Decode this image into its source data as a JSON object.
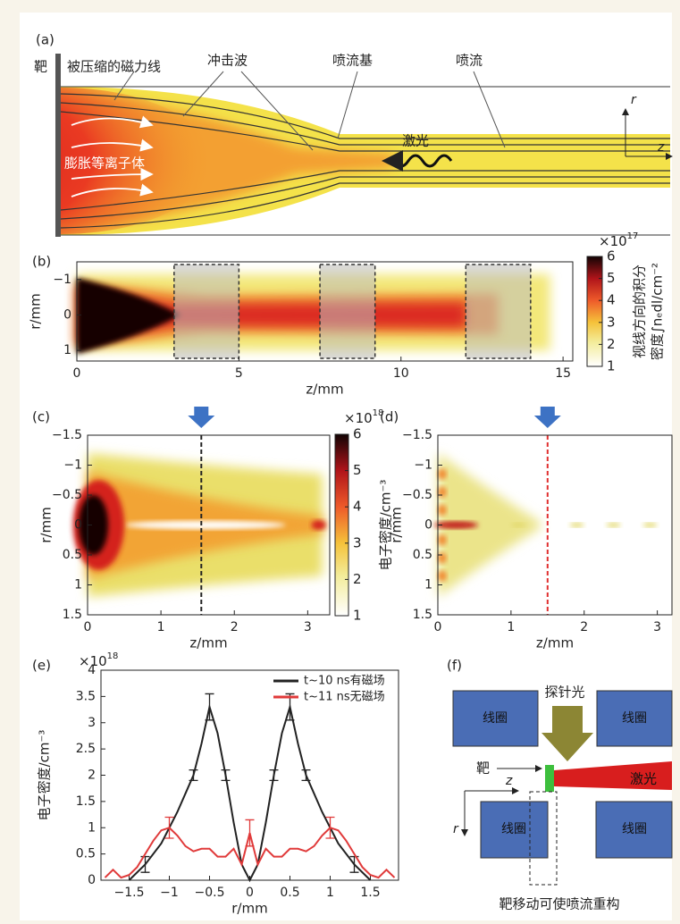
{
  "panel_a": {
    "panel_label": "(a)",
    "target": "靶",
    "field_lines": "被压缩的磁力线",
    "shock": "冲击波",
    "jet_base": "喷流基",
    "jet": "喷流",
    "plasma": "膨胀等离子体",
    "laser": "激光",
    "r_axis": "r",
    "z_axis": "z"
  },
  "chart_data": [
    {
      "type": "heatmap",
      "panel_label": "(b)",
      "xlabel": "z/mm",
      "ylabel": "r/mm",
      "xlim": [
        0,
        15.3
      ],
      "xticks": [
        0,
        5,
        10,
        15
      ],
      "ylim": [
        -1.5,
        1.3
      ],
      "yticks": [
        {
          "value": -1,
          "label": "−1"
        },
        0,
        1
      ],
      "colorbar": {
        "lim": [
          1,
          6
        ],
        "ticks": [
          1,
          2,
          3,
          4,
          5,
          6
        ],
        "scale_base": "×10",
        "scale_exponent": "17",
        "label": [
          "视线方向的积分",
          "密度∫nₑdl/cm⁻²"
        ]
      }
    },
    {
      "type": "heatmap",
      "panel_label": "(c)",
      "xlabel": "z/mm",
      "ylabel": "r/mm",
      "xlim": [
        0,
        3.3
      ],
      "xticks": [
        0,
        1,
        2,
        3
      ],
      "ylim": [
        -1.5,
        1.5
      ],
      "yticks": [
        {
          "value": -1.5,
          "label": "−1.5"
        },
        {
          "value": -1,
          "label": "−1"
        },
        {
          "value": -0.5,
          "label": "−0.5"
        },
        0,
        0.5,
        1,
        1.5
      ],
      "colorbar": {
        "lim": [
          1,
          6
        ],
        "ticks": [
          1,
          2,
          3,
          4,
          5,
          6
        ],
        "scale_base": "×10",
        "scale_exponent": "18",
        "label": [
          "电子密度/cm⁻³"
        ]
      }
    },
    {
      "type": "heatmap",
      "panel_label": "(d)",
      "xlabel": "z/mm",
      "ylabel": "r/mm",
      "xlim": [
        0,
        3.2
      ],
      "xticks": [
        0,
        1,
        2,
        3
      ],
      "ylim": [
        -1.5,
        1.5
      ],
      "yticks": [
        {
          "value": -1.5,
          "label": "−1.5"
        },
        {
          "value": -1,
          "label": "−1"
        },
        {
          "value": -0.5,
          "label": "−0.5"
        },
        0,
        0.5,
        1,
        1.5
      ]
    },
    {
      "type": "line",
      "panel_label": "(e)",
      "xlabel": "r/mm",
      "ylabel": "电子密度/cm⁻³",
      "scale_base": "×10",
      "scale_exponent": "18",
      "xlim": [
        -1.85,
        1.85
      ],
      "xticks": [
        {
          "value": -1.5,
          "label": "−1.5"
        },
        {
          "value": -1,
          "label": "−1"
        },
        {
          "value": -0.5,
          "label": "−0.5"
        },
        0,
        0.5,
        1,
        1.5
      ],
      "ylim": [
        0,
        4
      ],
      "yticks": [
        0,
        0.5,
        1,
        1.5,
        2,
        2.5,
        3,
        3.5,
        4
      ],
      "series": [
        {
          "name": "t~10 ns有磁场",
          "color": "#222222",
          "x": [
            -1.5,
            -1.3,
            -1.1,
            -1,
            -0.9,
            -0.8,
            -0.7,
            -0.6,
            -0.5,
            -0.4,
            -0.3,
            -0.2,
            -0.1,
            0,
            0.1,
            0.2,
            0.3,
            0.4,
            0.5,
            0.6,
            0.7,
            0.8,
            0.9,
            1,
            1.1,
            1.3,
            1.5
          ],
          "values": [
            0,
            0.3,
            0.7,
            1.0,
            1.3,
            1.65,
            2.0,
            2.6,
            3.3,
            2.8,
            2.0,
            1.1,
            0.3,
            0,
            0.3,
            1.1,
            2.0,
            2.8,
            3.3,
            2.6,
            2.0,
            1.65,
            1.3,
            1.0,
            0.7,
            0.3,
            0
          ],
          "errors": [
            null,
            0.15,
            null,
            null,
            null,
            null,
            0.1,
            null,
            0.25,
            null,
            0.1,
            null,
            null,
            null,
            null,
            null,
            0.1,
            null,
            0.25,
            null,
            0.1,
            null,
            null,
            null,
            null,
            0.15,
            null
          ]
        },
        {
          "name": "t~11 ns无磁场",
          "color": "#e03a3a",
          "x": [
            -1.8,
            -1.7,
            -1.6,
            -1.5,
            -1.4,
            -1.3,
            -1.2,
            -1.1,
            -1,
            -0.9,
            -0.8,
            -0.7,
            -0.6,
            -0.5,
            -0.4,
            -0.3,
            -0.2,
            -0.1,
            0,
            0.1,
            0.2,
            0.3,
            0.4,
            0.5,
            0.6,
            0.7,
            0.8,
            0.9,
            1,
            1.1,
            1.2,
            1.3,
            1.4,
            1.5,
            1.6,
            1.7,
            1.8
          ],
          "values": [
            0.05,
            0.2,
            0.05,
            0.1,
            0.25,
            0.5,
            0.75,
            0.95,
            1.0,
            0.85,
            0.65,
            0.55,
            0.6,
            0.6,
            0.45,
            0.45,
            0.6,
            0.3,
            0.9,
            0.3,
            0.6,
            0.45,
            0.45,
            0.6,
            0.6,
            0.55,
            0.65,
            0.85,
            1.0,
            0.95,
            0.75,
            0.5,
            0.25,
            0.1,
            0.05,
            0.2,
            0.05
          ],
          "errors": [
            null,
            null,
            null,
            null,
            null,
            null,
            null,
            null,
            0.2,
            null,
            null,
            null,
            null,
            null,
            null,
            null,
            null,
            null,
            0.25,
            null,
            null,
            null,
            null,
            null,
            null,
            null,
            null,
            null,
            0.2,
            null,
            null,
            null,
            null,
            null,
            null,
            null,
            null
          ]
        }
      ]
    }
  ],
  "panel_f": {
    "panel_label": "(f)",
    "probe": "探针光",
    "coils": [
      "线圈",
      "线圈",
      "线圈",
      "线圈"
    ],
    "target": "靶",
    "z_axis": "z",
    "r_axis": "r",
    "laser": "激光",
    "caption": "靶移动可使喷流重构"
  }
}
